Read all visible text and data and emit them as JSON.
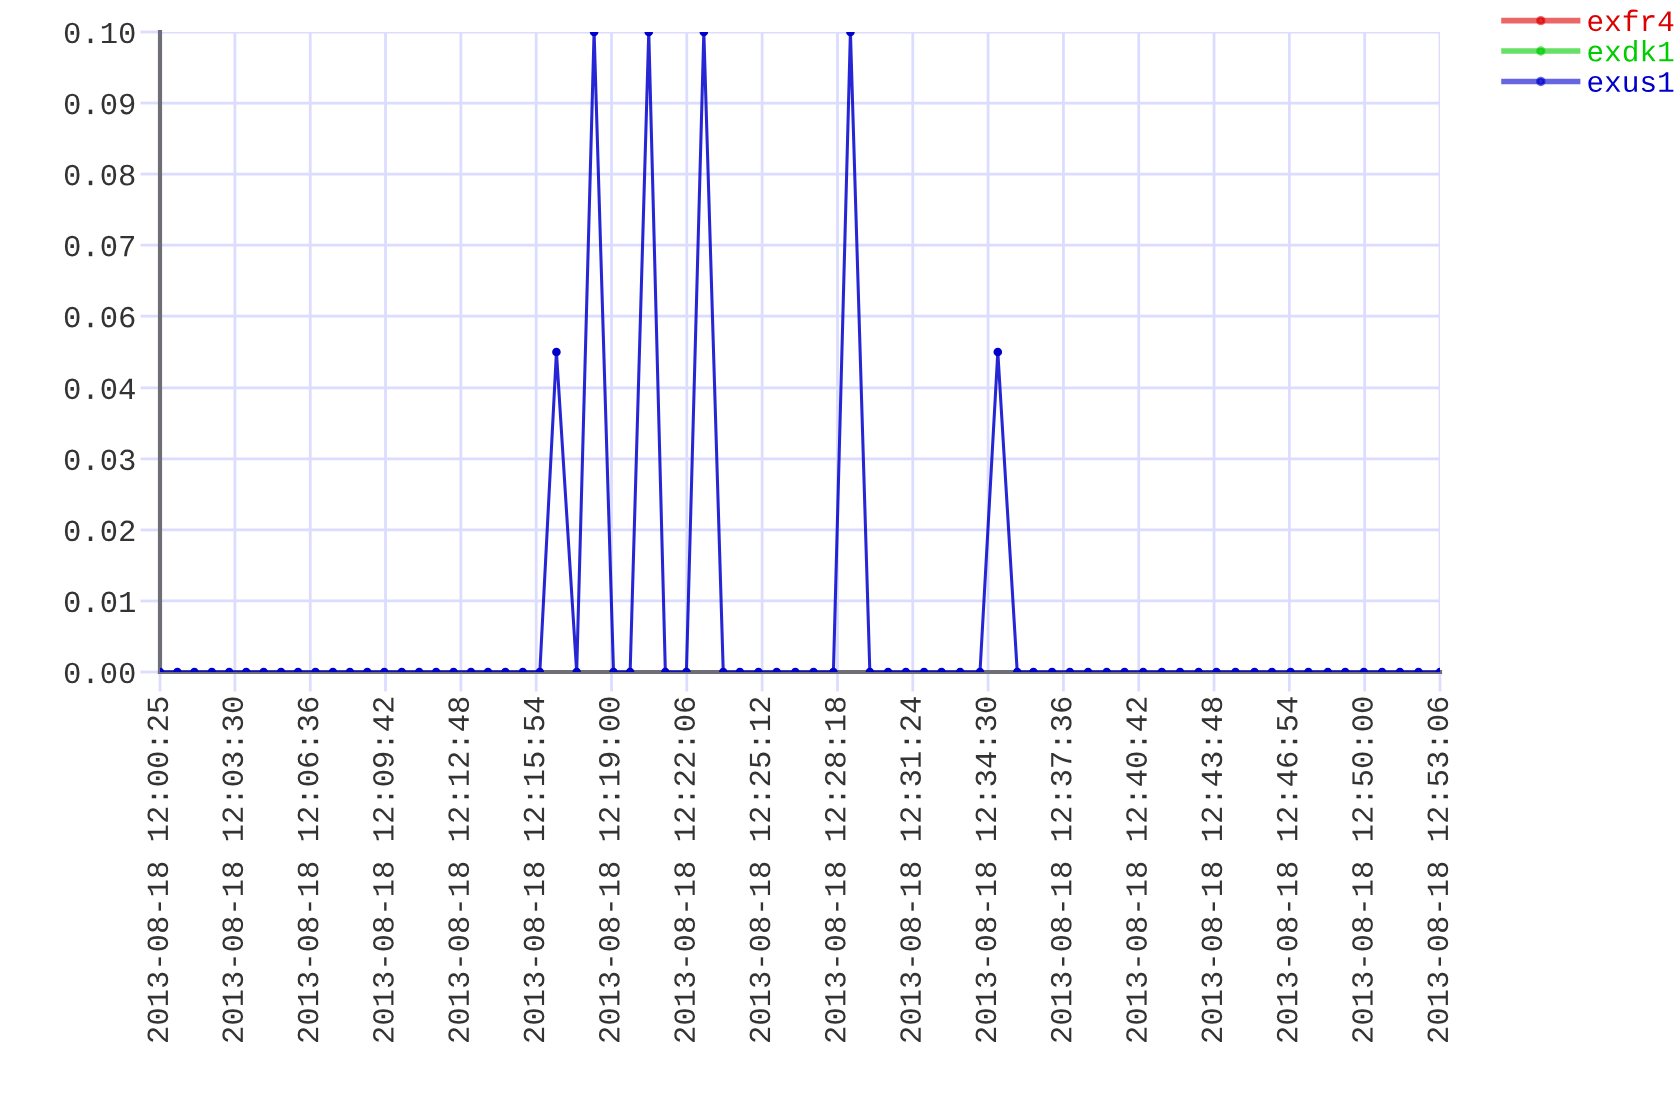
{
  "chart_data": {
    "type": "line",
    "x": [
      "2013-08-18T12:00:25",
      "2013-08-18T12:01:08",
      "2013-08-18T12:01:50",
      "2013-08-18T12:02:33",
      "2013-08-18T12:03:16",
      "2013-08-18T12:03:58",
      "2013-08-18T12:04:41",
      "2013-08-18T12:05:24",
      "2013-08-18T12:06:06",
      "2013-08-18T12:06:49",
      "2013-08-18T12:07:32",
      "2013-08-18T12:08:14",
      "2013-08-18T12:08:57",
      "2013-08-18T12:09:39",
      "2013-08-18T12:10:22",
      "2013-08-18T12:11:05",
      "2013-08-18T12:11:47",
      "2013-08-18T12:12:30",
      "2013-08-18T12:13:13",
      "2013-08-18T12:13:55",
      "2013-08-18T12:14:38",
      "2013-08-18T12:15:21",
      "2013-08-18T12:16:03",
      "2013-08-18T12:16:44",
      "2013-08-18T12:17:34",
      "2013-08-18T12:18:17",
      "2013-08-18T12:19:05",
      "2013-08-18T12:19:46",
      "2013-08-18T12:20:32",
      "2013-08-18T12:21:13",
      "2013-08-18T12:22:05",
      "2013-08-18T12:22:48",
      "2013-08-18T12:23:36",
      "2013-08-18T12:24:17",
      "2013-08-18T12:25:03",
      "2013-08-18T12:25:48",
      "2013-08-18T12:26:34",
      "2013-08-18T12:27:19",
      "2013-08-18T12:28:08",
      "2013-08-18T12:28:50",
      "2013-08-18T12:29:38",
      "2013-08-18T12:30:23",
      "2013-08-18T12:31:07",
      "2013-08-18T12:31:52",
      "2013-08-18T12:32:35",
      "2013-08-18T12:33:21",
      "2013-08-18T12:34:10",
      "2013-08-18T12:34:54",
      "2013-08-18T12:35:42",
      "2013-08-18T12:36:22",
      "2013-08-18T12:37:08",
      "2013-08-18T12:37:52",
      "2013-08-18T12:38:37",
      "2013-08-18T12:39:23",
      "2013-08-18T12:40:07",
      "2013-08-18T12:40:53",
      "2013-08-18T12:41:39",
      "2013-08-18T12:42:24",
      "2013-08-18T12:43:10",
      "2013-08-18T12:43:54",
      "2013-08-18T12:44:41",
      "2013-08-18T12:45:28",
      "2013-08-18T12:46:11",
      "2013-08-18T12:46:57",
      "2013-08-18T12:47:41",
      "2013-08-18T12:48:29",
      "2013-08-18T12:49:12",
      "2013-08-18T12:49:58",
      "2013-08-18T12:50:43",
      "2013-08-18T12:51:27",
      "2013-08-18T12:52:13",
      "2013-08-18T12:53:06"
    ],
    "series": [
      {
        "name": "exfr4",
        "color": "#dd0000",
        "values": [
          null,
          null,
          null,
          null,
          null,
          null,
          null,
          null,
          null,
          null,
          null,
          null,
          null,
          null,
          null,
          null,
          null,
          null,
          null,
          null,
          null,
          null,
          null,
          null,
          null,
          null,
          null,
          null,
          null,
          null,
          null,
          null,
          null,
          null,
          null,
          null,
          null,
          null,
          null,
          null,
          null,
          null,
          null,
          null,
          null,
          null,
          null,
          null,
          null,
          null,
          null,
          null,
          null,
          null,
          null,
          null,
          null,
          null,
          null,
          null,
          null,
          null,
          null,
          null,
          null,
          null,
          null,
          null,
          null,
          null,
          null,
          null
        ]
      },
      {
        "name": "exdk1",
        "color": "#00cc00",
        "values": [
          null,
          null,
          null,
          null,
          null,
          null,
          null,
          null,
          null,
          null,
          null,
          null,
          null,
          null,
          null,
          null,
          null,
          null,
          null,
          null,
          null,
          null,
          null,
          null,
          null,
          null,
          null,
          null,
          null,
          null,
          null,
          null,
          null,
          null,
          null,
          null,
          null,
          null,
          null,
          null,
          null,
          null,
          null,
          null,
          null,
          null,
          null,
          null,
          null,
          null,
          null,
          null,
          null,
          null,
          null,
          null,
          null,
          null,
          null,
          null,
          null,
          null,
          null,
          null,
          null,
          null,
          null,
          null,
          null,
          null,
          null,
          null
        ]
      },
      {
        "name": "exus1",
        "color": "#0000cc",
        "values": [
          0,
          0,
          0,
          0,
          0,
          0,
          0,
          0,
          0,
          0,
          0,
          0,
          0,
          0,
          0,
          0,
          0,
          0,
          0,
          0,
          0,
          0,
          0,
          0.05,
          0,
          0.1,
          0,
          0,
          0.1,
          0,
          0,
          0.1,
          0,
          0,
          0,
          0,
          0,
          0,
          0,
          0.1,
          0,
          0,
          0,
          0,
          0,
          0,
          0,
          0.05,
          0,
          0,
          0,
          0,
          0,
          0,
          0,
          0,
          0,
          0,
          0,
          0,
          0,
          0,
          0,
          0,
          0,
          0,
          0,
          0,
          0,
          0,
          0,
          0
        ]
      }
    ],
    "xlim": [
      "2013-08-18T12:00:25",
      "2013-08-18T12:53:06"
    ],
    "xticks": [
      {
        "value": "2013-08-18T12:00:25",
        "label": "2013-08-18 12:00:25"
      },
      {
        "value": "2013-08-18T12:03:30",
        "label": "2013-08-18 12:03:30"
      },
      {
        "value": "2013-08-18T12:06:36",
        "label": "2013-08-18 12:06:36"
      },
      {
        "value": "2013-08-18T12:09:42",
        "label": "2013-08-18 12:09:42"
      },
      {
        "value": "2013-08-18T12:12:48",
        "label": "2013-08-18 12:12:48"
      },
      {
        "value": "2013-08-18T12:15:54",
        "label": "2013-08-18 12:15:54"
      },
      {
        "value": "2013-08-18T12:19:00",
        "label": "2013-08-18 12:19:00"
      },
      {
        "value": "2013-08-18T12:22:06",
        "label": "2013-08-18 12:22:06"
      },
      {
        "value": "2013-08-18T12:25:12",
        "label": "2013-08-18 12:25:12"
      },
      {
        "value": "2013-08-18T12:28:18",
        "label": "2013-08-18 12:28:18"
      },
      {
        "value": "2013-08-18T12:31:24",
        "label": "2013-08-18 12:31:24"
      },
      {
        "value": "2013-08-18T12:34:30",
        "label": "2013-08-18 12:34:30"
      },
      {
        "value": "2013-08-18T12:37:36",
        "label": "2013-08-18 12:37:36"
      },
      {
        "value": "2013-08-18T12:40:42",
        "label": "2013-08-18 12:40:42"
      },
      {
        "value": "2013-08-18T12:43:48",
        "label": "2013-08-18 12:43:48"
      },
      {
        "value": "2013-08-18T12:46:54",
        "label": "2013-08-18 12:46:54"
      },
      {
        "value": "2013-08-18T12:50:00",
        "label": "2013-08-18 12:50:00"
      },
      {
        "value": "2013-08-18T12:53:06",
        "label": "2013-08-18 12:53:06"
      }
    ],
    "ylim": [
      0,
      0.1
    ],
    "yticks": [
      {
        "value": 0,
        "label": "0.00"
      },
      {
        "value": 0.0111,
        "label": "0.01"
      },
      {
        "value": 0.0222,
        "label": "0.02"
      },
      {
        "value": 0.0333,
        "label": "0.03"
      },
      {
        "value": 0.0444,
        "label": "0.04"
      },
      {
        "value": 0.0556,
        "label": "0.06"
      },
      {
        "value": 0.0667,
        "label": "0.07"
      },
      {
        "value": 0.0778,
        "label": "0.08"
      },
      {
        "value": 0.0889,
        "label": "0.09"
      },
      {
        "value": 0.1,
        "label": "0.10"
      }
    ],
    "grid": true,
    "legend": "top right",
    "marker": "circle",
    "line_style": "solid"
  }
}
